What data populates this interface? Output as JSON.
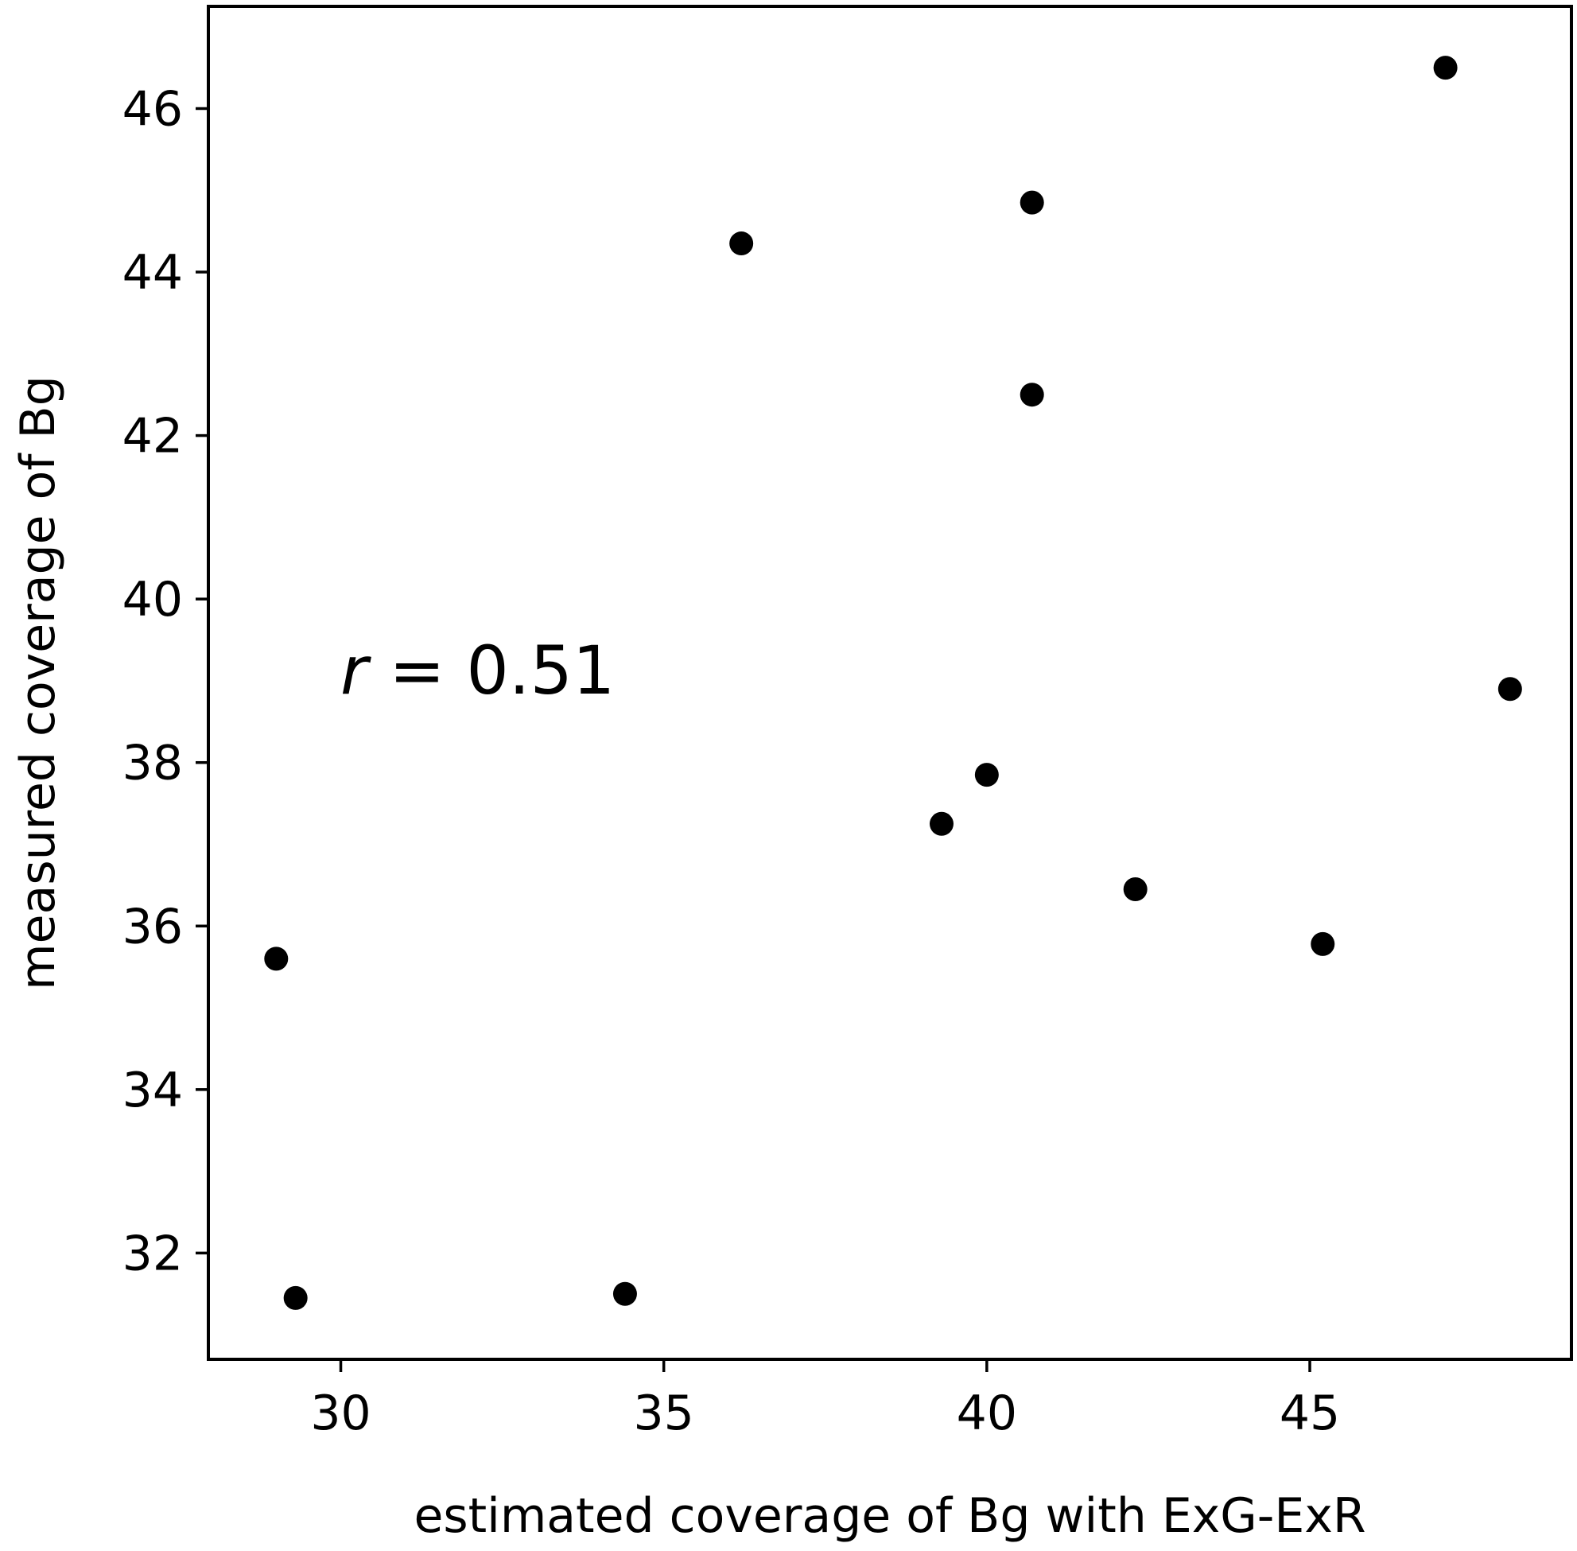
{
  "chart_data": {
    "type": "scatter",
    "title": "",
    "xlabel": "estimated coverage of Bg with ExG-ExR",
    "ylabel": "measured coverage of Bg",
    "xlim": [
      27.95,
      49.05
    ],
    "ylim": [
      30.7,
      47.25
    ],
    "x_ticks": [
      30,
      35,
      40,
      45
    ],
    "y_ticks": [
      32,
      34,
      36,
      38,
      40,
      42,
      44,
      46
    ],
    "grid": false,
    "legend": "none",
    "marker_color": "#000000",
    "annotation": {
      "var": "r",
      "text": " = 0.51"
    },
    "points": [
      {
        "x": 29.0,
        "y": 35.6
      },
      {
        "x": 29.3,
        "y": 31.45
      },
      {
        "x": 34.4,
        "y": 31.5
      },
      {
        "x": 36.2,
        "y": 44.35
      },
      {
        "x": 39.3,
        "y": 37.25
      },
      {
        "x": 40.0,
        "y": 37.85
      },
      {
        "x": 40.7,
        "y": 44.85
      },
      {
        "x": 40.7,
        "y": 42.5
      },
      {
        "x": 42.3,
        "y": 36.45
      },
      {
        "x": 45.2,
        "y": 35.78
      },
      {
        "x": 47.1,
        "y": 46.5
      },
      {
        "x": 48.1,
        "y": 38.9
      }
    ]
  }
}
